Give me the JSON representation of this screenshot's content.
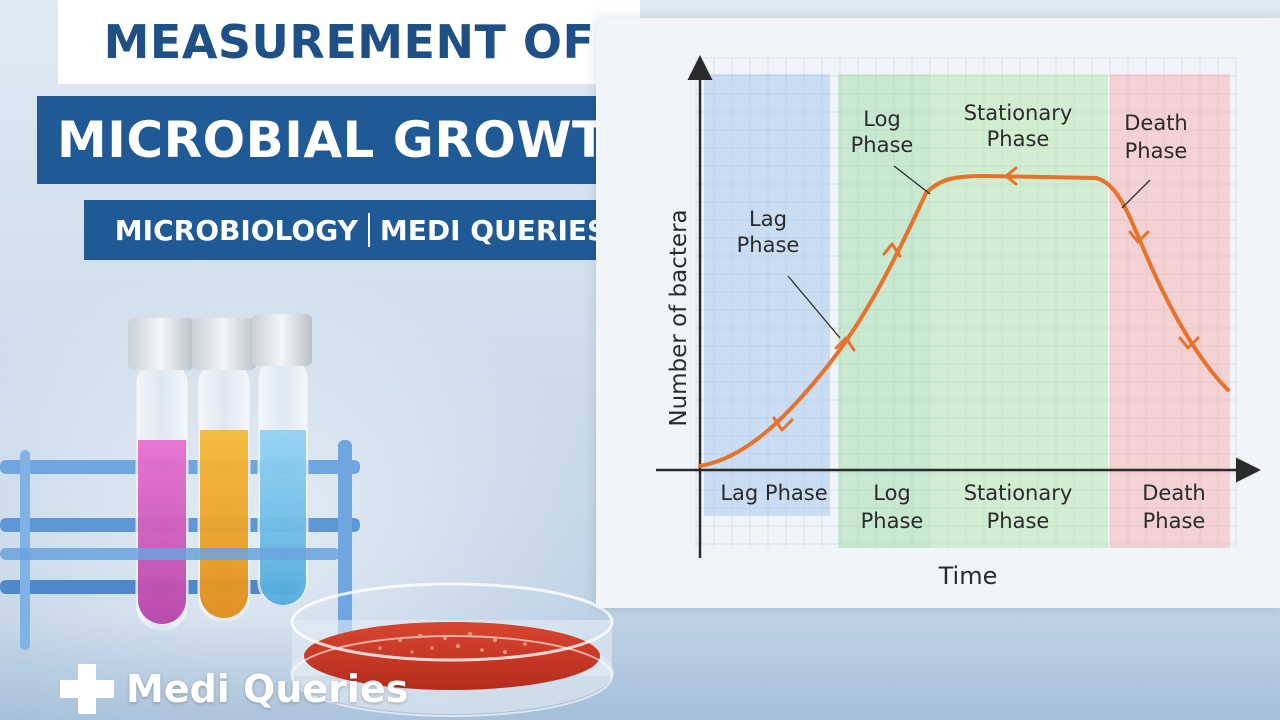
{
  "title": {
    "line1": "MEASUREMENT OF",
    "line2": "MICROBIAL GROWTH"
  },
  "subtitle": {
    "left": "MICROBIOLOGY",
    "right": "MEDI QUERIES"
  },
  "brand": {
    "name": "Medi Queries",
    "icon": "medical-cross-icon"
  },
  "chart_data": {
    "type": "line",
    "title": "",
    "xlabel": "Time",
    "ylabel": "Number of bactera",
    "grid": true,
    "phases": [
      {
        "key": "lag",
        "top_label": [
          "Lag",
          "Phase"
        ],
        "bottom_label": [
          "Lag Phase"
        ],
        "color": "#a9c9ee"
      },
      {
        "key": "log",
        "top_label": [
          "Log",
          "Phase"
        ],
        "bottom_label": [
          "Log",
          "Phase"
        ],
        "color": "#a8dcae"
      },
      {
        "key": "stationary",
        "top_label": [
          "Stationary",
          "Phase"
        ],
        "bottom_label": [
          "Stationary",
          "Phase"
        ],
        "color": "#b8e6b0"
      },
      {
        "key": "death",
        "top_label": [
          "Death",
          "Phase"
        ],
        "bottom_label": [
          "Death",
          "Phase"
        ],
        "color": "#f5b5b5"
      }
    ],
    "curve_color": "#e8722a"
  },
  "colors": {
    "title_blue": "#1f4f87",
    "banner_blue": "#1f5a97"
  }
}
